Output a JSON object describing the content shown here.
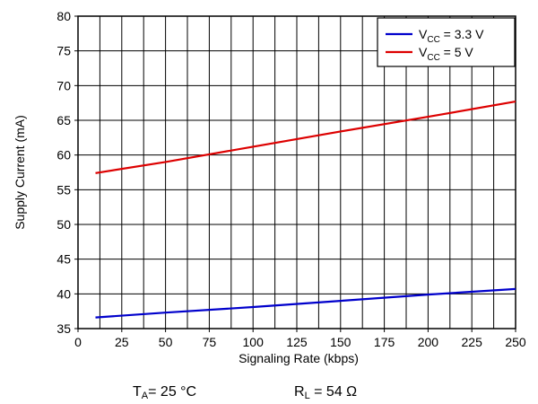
{
  "chart_data": {
    "type": "line",
    "xlabel": "Signaling Rate (kbps)",
    "ylabel": "Supply Current (mA)",
    "xlim": [
      0,
      250
    ],
    "ylim": [
      35,
      80
    ],
    "x_ticks": [
      0,
      25,
      50,
      75,
      100,
      125,
      150,
      175,
      200,
      225,
      250
    ],
    "y_ticks": [
      35,
      40,
      45,
      50,
      55,
      60,
      65,
      70,
      75,
      80
    ],
    "x_tick_labels": [
      "0",
      "25",
      "50",
      "75",
      "100",
      "125",
      "150",
      "175",
      "200",
      "225",
      "250"
    ],
    "y_tick_labels": [
      "35",
      "40",
      "45",
      "50",
      "55",
      "60",
      "65",
      "70",
      "75",
      "80"
    ],
    "x_minor_step": 12.5,
    "grid": true,
    "legend_position": "top-right",
    "series": [
      {
        "legend_prefix": "V",
        "legend_sub": "CC",
        "legend_suffix": " = 3.3 V",
        "color": "#0000cc",
        "x": [
          10,
          50,
          100,
          150,
          200,
          250
        ],
        "y": [
          36.6,
          37.3,
          38.1,
          39.0,
          39.9,
          40.7
        ]
      },
      {
        "legend_prefix": "V",
        "legend_sub": "CC",
        "legend_suffix": " = 5 V",
        "color": "#dd0000",
        "x": [
          10,
          50,
          100,
          150,
          200,
          250
        ],
        "y": [
          57.4,
          59.0,
          61.2,
          63.4,
          65.5,
          67.7
        ]
      }
    ]
  },
  "footnotes": {
    "ta_prefix": "T",
    "ta_sub": "A",
    "ta_suffix": "= 25 °C",
    "rl_prefix": "R",
    "rl_sub": "L",
    "rl_suffix": " = 54 Ω"
  }
}
